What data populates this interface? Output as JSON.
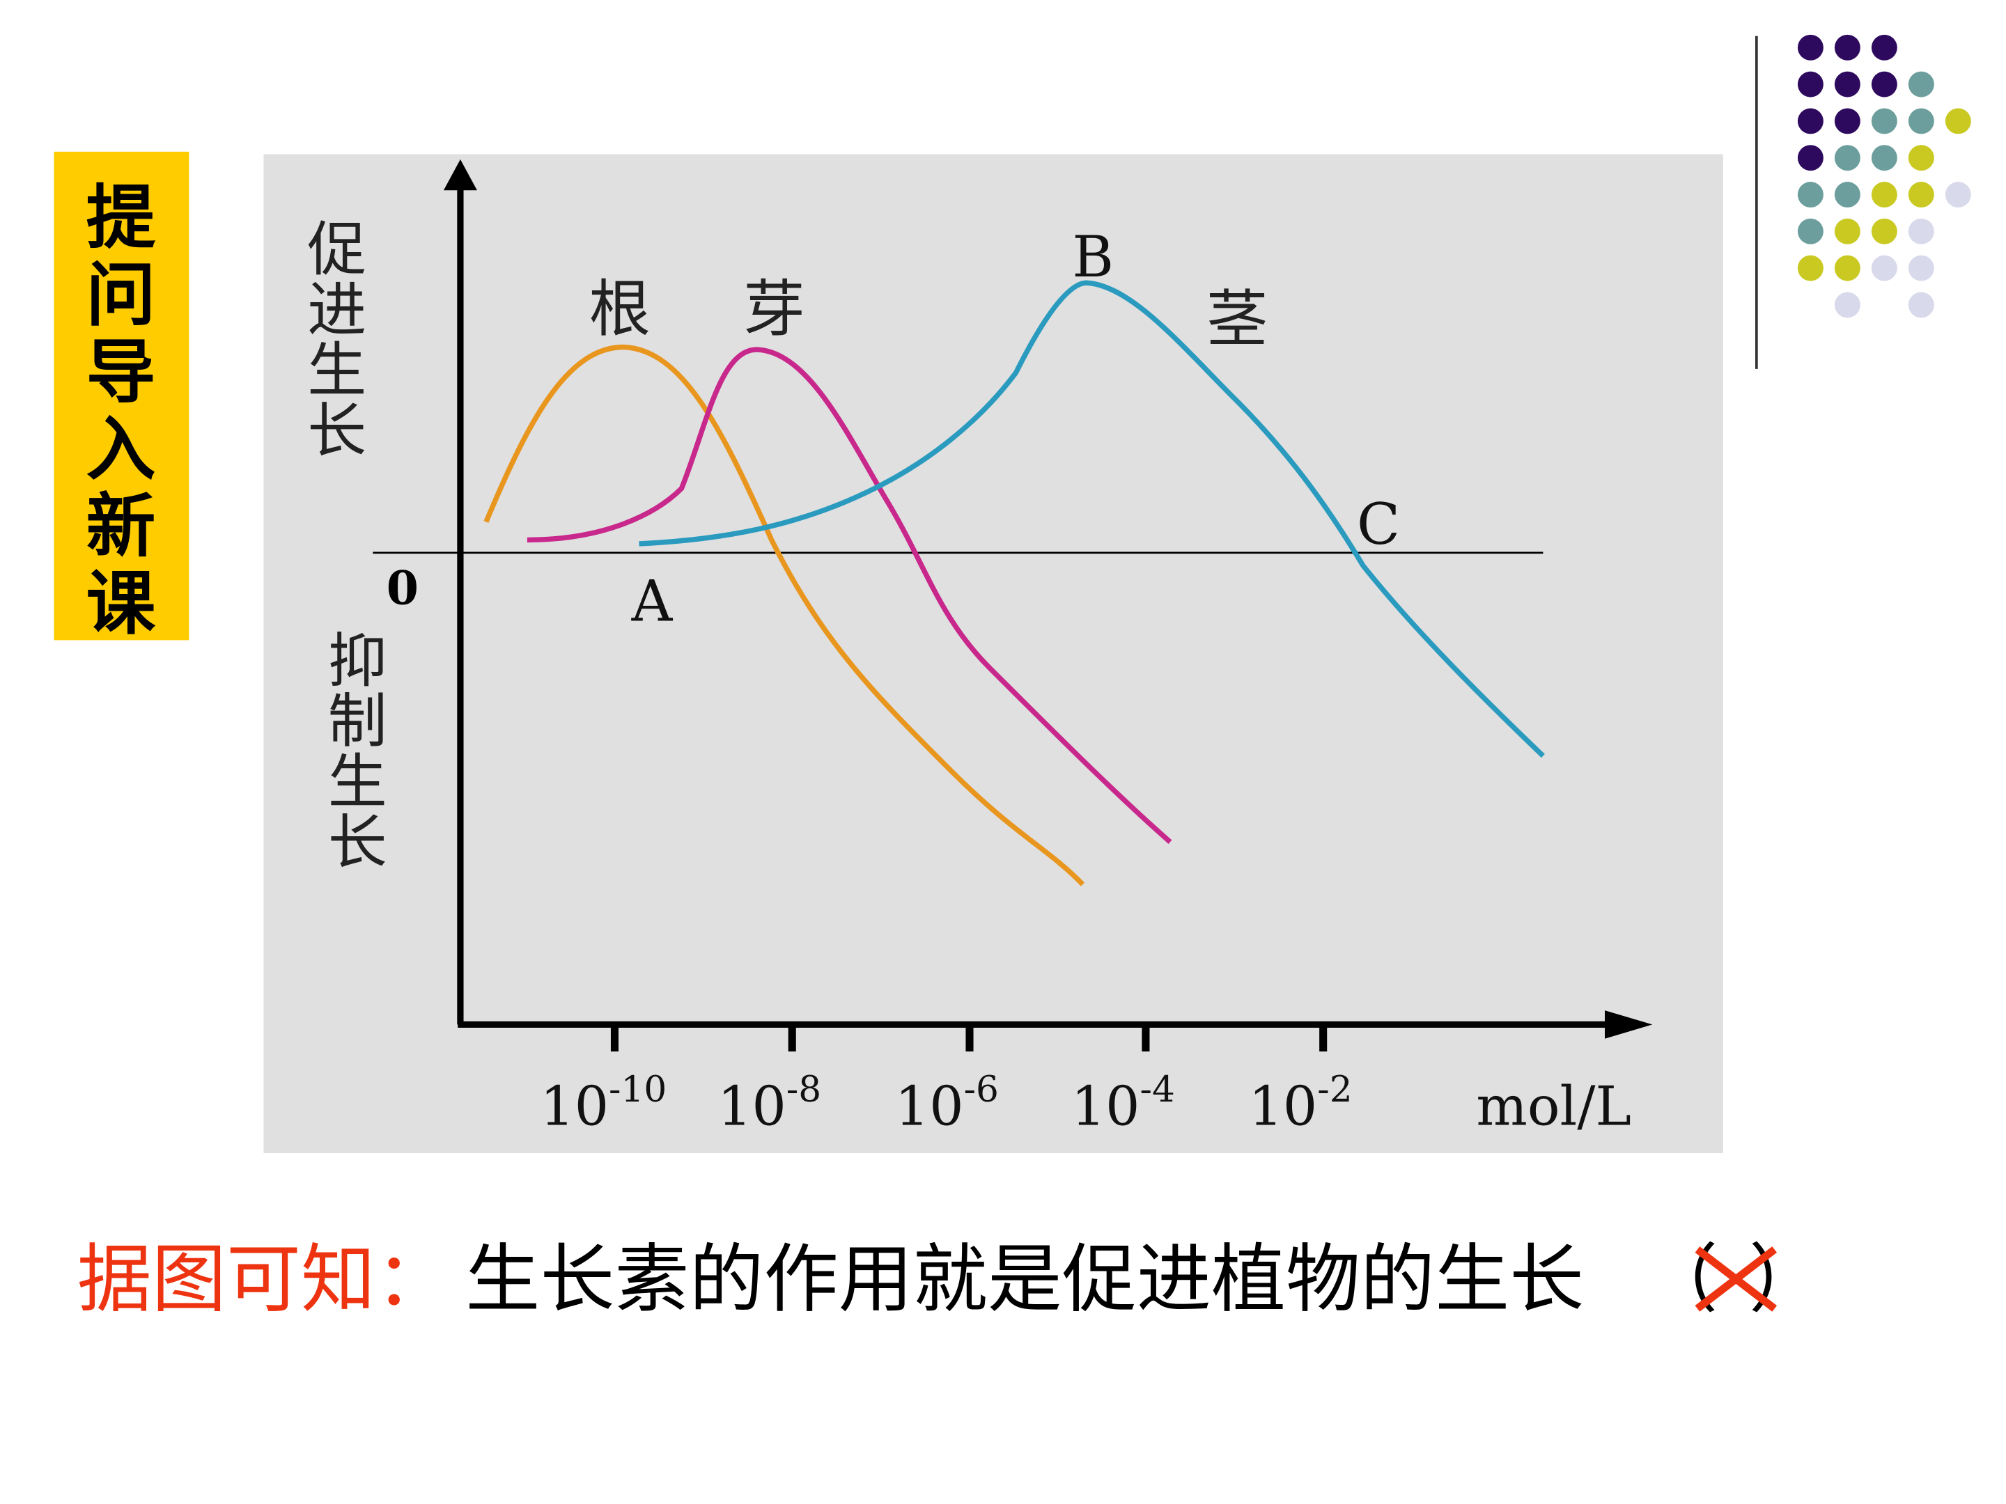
{
  "side_tab": "提问导入新课",
  "chart": {
    "y_label_top": [
      "促",
      "进",
      "生",
      "长"
    ],
    "y_label_bottom": [
      "抑",
      "制",
      "生",
      "长"
    ],
    "origin": "0",
    "curve_labels": [
      "根",
      "芽",
      "茎"
    ],
    "points": [
      "A",
      "B",
      "C"
    ],
    "x_ticks": [
      {
        "base": "10",
        "exponent": "-10"
      },
      {
        "base": "10",
        "exponent": "-8"
      },
      {
        "base": "10",
        "exponent": "-6"
      },
      {
        "base": "10",
        "exponent": "-4"
      },
      {
        "base": "10",
        "exponent": "-2"
      }
    ],
    "x_unit": "mol/L"
  },
  "statement": {
    "lead": "据图可知：",
    "text": "生长素的作用就是促进植物的生长",
    "open": "（",
    "close": "）"
  }
}
